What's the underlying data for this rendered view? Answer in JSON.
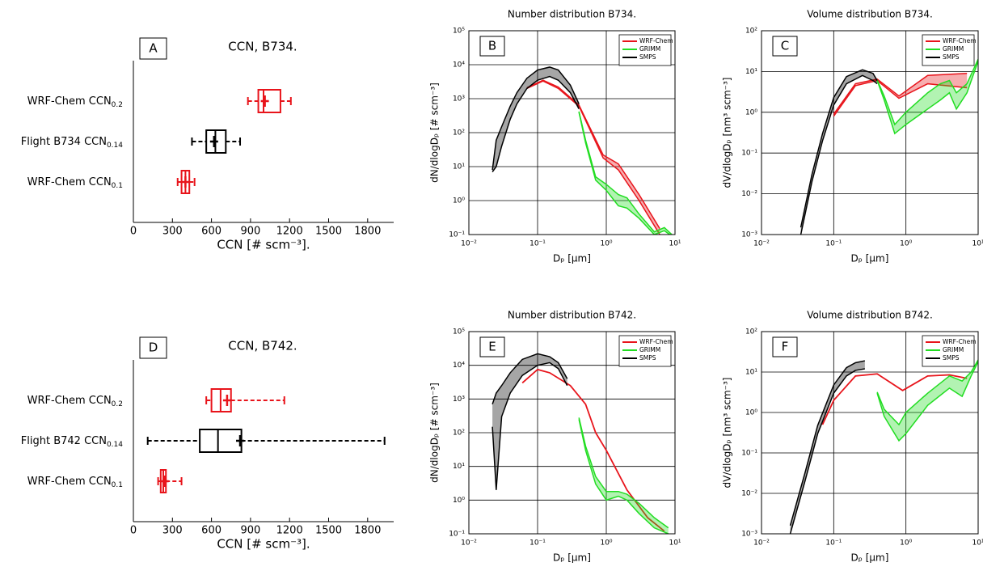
{
  "chart_data": [
    {
      "type": "box",
      "panel_label": "A",
      "title": "CCN, B734.",
      "xlabel": "CCN [# scm⁻³].",
      "categories": [
        "WRF-Chem CCN0.2",
        "Flight B734 CCN0.14",
        "WRF-Chem CCN0.1"
      ],
      "stats": [
        {
          "color": "#e8141b",
          "low": 880,
          "q1": 960,
          "median": 1000,
          "q3": 1130,
          "high": 1210,
          "mean": 1010
        },
        {
          "color": "#000000",
          "low": 450,
          "q1": 560,
          "median": 630,
          "q3": 710,
          "high": 820,
          "mean": 620
        },
        {
          "color": "#e8141b",
          "low": 340,
          "q1": 370,
          "median": 400,
          "q3": 430,
          "high": 470,
          "mean": 400
        }
      ],
      "whisker_style": "dashed",
      "xlim": [
        0,
        2000
      ],
      "xticks": [
        0,
        300,
        600,
        900,
        1200,
        1500,
        1800
      ]
    },
    {
      "type": "loglog",
      "panel_label": "B",
      "title": "Number distribution B734.",
      "xlabel": "Dₚ [μm]",
      "ylabel": "dN/dlogDₚ [# scm⁻³]",
      "xlim": [
        0.01,
        10
      ],
      "ylim": [
        0.1,
        100000
      ],
      "xticks": [
        {
          "value": 0.01,
          "label": "10⁻²"
        },
        {
          "value": 0.1,
          "label": "10⁻¹"
        },
        {
          "value": 1,
          "label": "10⁰"
        },
        {
          "value": 10,
          "label": "10¹"
        }
      ],
      "yticks": [
        {
          "value": 0.1,
          "label": "10⁻¹"
        },
        {
          "value": 1,
          "label": "10⁰"
        },
        {
          "value": 10,
          "label": "10¹"
        },
        {
          "value": 100,
          "label": "10²"
        },
        {
          "value": 1000,
          "label": "10³"
        },
        {
          "value": 10000,
          "label": "10⁴"
        },
        {
          "value": 100000,
          "label": "10⁵"
        }
      ],
      "log_scale": true,
      "grid": true,
      "legend": "upper right",
      "series": [
        {
          "name": "WRF-Chem",
          "color": "#e8141b",
          "x": [
            0.07,
            0.12,
            0.2,
            0.4,
            0.9,
            1.5,
            3,
            6
          ],
          "lower": [
            2000,
            3300,
            2000,
            600,
            18,
            8,
            1,
            0.1
          ],
          "upper": [
            2100,
            3500,
            2200,
            650,
            22,
            12,
            1.5,
            0.15
          ]
        },
        {
          "name": "GRIMM",
          "color": "#22dd22",
          "x": [
            0.4,
            0.5,
            0.7,
            1,
            1.5,
            2,
            3,
            5,
            7,
            9
          ],
          "lower": [
            400,
            50,
            4,
            2,
            0.7,
            0.6,
            0.3,
            0.1,
            0.13,
            0.09
          ],
          "upper": [
            420,
            60,
            5,
            3,
            1.5,
            1.2,
            0.4,
            0.12,
            0.16,
            0.1
          ]
        },
        {
          "name": "SMPS",
          "color": "#000000",
          "x": [
            0.022,
            0.025,
            0.03,
            0.04,
            0.05,
            0.07,
            0.1,
            0.15,
            0.2,
            0.3,
            0.4
          ],
          "lower": [
            7,
            10,
            40,
            250,
            700,
            2000,
            3500,
            4500,
            3500,
            1500,
            500
          ],
          "upper": [
            8,
            60,
            150,
            600,
            1500,
            4000,
            7000,
            8500,
            7000,
            2500,
            700
          ]
        }
      ]
    },
    {
      "type": "loglog",
      "panel_label": "C",
      "title": "Volume distribution B734.",
      "xlabel": "Dₚ [μm]",
      "ylabel": "dV/dlogDₚ [nm³ scm⁻³]",
      "xlim": [
        0.01,
        10
      ],
      "ylim": [
        0.001,
        100
      ],
      "xticks": [
        {
          "value": 0.01,
          "label": "10⁻²"
        },
        {
          "value": 0.1,
          "label": "10⁻¹"
        },
        {
          "value": 1,
          "label": "10⁰"
        },
        {
          "value": 10,
          "label": "10¹"
        }
      ],
      "yticks": [
        {
          "value": 0.001,
          "label": "10⁻³"
        },
        {
          "value": 0.01,
          "label": "10⁻²"
        },
        {
          "value": 0.1,
          "label": "10⁻¹"
        },
        {
          "value": 1,
          "label": "10⁰"
        },
        {
          "value": 10,
          "label": "10¹"
        },
        {
          "value": 100,
          "label": "10²"
        }
      ],
      "log_scale": true,
      "grid": true,
      "legend": "upper right",
      "series": [
        {
          "name": "WRF-Chem",
          "color": "#e8141b",
          "x": [
            0.1,
            0.2,
            0.4,
            0.8,
            2,
            7
          ],
          "lower": [
            0.8,
            4.5,
            6,
            2.2,
            5,
            4
          ],
          "upper": [
            0.9,
            5,
            6.5,
            2.5,
            8,
            9
          ]
        },
        {
          "name": "GRIMM",
          "color": "#22dd22",
          "x": [
            0.4,
            0.5,
            0.7,
            1,
            2,
            3,
            4,
            5,
            7,
            10
          ],
          "lower": [
            6,
            2,
            0.3,
            0.5,
            1.2,
            2,
            3,
            1.2,
            3,
            18
          ],
          "upper": [
            6.2,
            2.5,
            0.5,
            1,
            3,
            5,
            6,
            3,
            5,
            20
          ]
        },
        {
          "name": "SMPS",
          "color": "#000000",
          "x": [
            0.035,
            0.05,
            0.07,
            0.1,
            0.15,
            0.25,
            0.35,
            0.4
          ],
          "lower": [
            0.001,
            0.02,
            0.2,
            1.5,
            5,
            8,
            6,
            5
          ],
          "upper": [
            0.0015,
            0.03,
            0.3,
            2.3,
            7.5,
            11,
            9,
            6
          ]
        }
      ]
    },
    {
      "type": "box",
      "panel_label": "D",
      "title": "CCN, B742.",
      "xlabel": "CCN [# scm⁻³].",
      "categories": [
        "WRF-Chem CCN0.2",
        "Flight B742 CCN0.14",
        "WRF-Chem CCN0.1"
      ],
      "stats": [
        {
          "color": "#e8141b",
          "low": 560,
          "q1": 600,
          "median": 670,
          "q3": 750,
          "high": 1160,
          "mean": 720
        },
        {
          "color": "#000000",
          "low": 110,
          "q1": 510,
          "median": 650,
          "q3": 830,
          "high": 1930,
          "mean": 820
        },
        {
          "color": "#e8141b",
          "low": 190,
          "q1": 210,
          "median": 230,
          "q3": 250,
          "high": 370,
          "mean": 240
        }
      ],
      "whisker_style": "dashed",
      "xlim": [
        0,
        2000
      ],
      "xticks": [
        0,
        300,
        600,
        900,
        1200,
        1500,
        1800
      ]
    },
    {
      "type": "loglog",
      "panel_label": "E",
      "title": "Number distribution B742.",
      "xlabel": "Dₚ [μm]",
      "ylabel": "dN/dlogDₚ [# scm⁻³]",
      "xlim": [
        0.01,
        10
      ],
      "ylim": [
        0.1,
        100000
      ],
      "xticks": [
        {
          "value": 0.01,
          "label": "10⁻²"
        },
        {
          "value": 0.1,
          "label": "10⁻¹"
        },
        {
          "value": 1,
          "label": "10⁰"
        },
        {
          "value": 10,
          "label": "10¹"
        }
      ],
      "yticks": [
        {
          "value": 0.1,
          "label": "10⁻¹"
        },
        {
          "value": 1,
          "label": "10⁰"
        },
        {
          "value": 10,
          "label": "10¹"
        },
        {
          "value": 100,
          "label": "10²"
        },
        {
          "value": 1000,
          "label": "10³"
        },
        {
          "value": 10000,
          "label": "10⁴"
        },
        {
          "value": 100000,
          "label": "10⁵"
        }
      ],
      "log_scale": true,
      "grid": true,
      "legend": "upper right",
      "series": [
        {
          "name": "WRF-Chem",
          "color": "#e8141b",
          "x": [
            0.06,
            0.1,
            0.15,
            0.3,
            0.5,
            0.7,
            1,
            2,
            4,
            7
          ],
          "values": [
            3000,
            7500,
            6000,
            2500,
            700,
            100,
            30,
            2,
            0.3,
            0.12
          ]
        },
        {
          "name": "GRIMM",
          "color": "#22dd22",
          "x": [
            0.4,
            0.5,
            0.7,
            1,
            1.5,
            2,
            3,
            5,
            8
          ],
          "lower": [
            250,
            30,
            3,
            1,
            1.3,
            1,
            0.4,
            0.15,
            0.1
          ],
          "upper": [
            280,
            40,
            5,
            1.8,
            1.8,
            1.5,
            0.8,
            0.3,
            0.15
          ]
        },
        {
          "name": "SMPS",
          "color": "#000000",
          "x": [
            0.022,
            0.025,
            0.03,
            0.04,
            0.06,
            0.1,
            0.15,
            0.2,
            0.27
          ],
          "lower": [
            150,
            2,
            300,
            1500,
            5000,
            10000,
            12000,
            8000,
            2500
          ],
          "upper": [
            700,
            1500,
            2500,
            6000,
            15000,
            22000,
            18000,
            12000,
            4000
          ]
        }
      ]
    },
    {
      "type": "loglog",
      "panel_label": "F",
      "title": "Volume distribution B742.",
      "xlabel": "Dₚ [μm]",
      "ylabel": "dV/dlogDₚ [nm³ scm⁻³]",
      "xlim": [
        0.01,
        10
      ],
      "ylim": [
        0.001,
        100
      ],
      "xticks": [
        {
          "value": 0.01,
          "label": "10⁻²"
        },
        {
          "value": 0.1,
          "label": "10⁻¹"
        },
        {
          "value": 1,
          "label": "10⁰"
        },
        {
          "value": 10,
          "label": "10¹"
        }
      ],
      "yticks": [
        {
          "value": 0.001,
          "label": "10⁻³"
        },
        {
          "value": 0.01,
          "label": "10⁻²"
        },
        {
          "value": 0.1,
          "label": "10⁻¹"
        },
        {
          "value": 1,
          "label": "10⁰"
        },
        {
          "value": 10,
          "label": "10¹"
        },
        {
          "value": 100,
          "label": "10²"
        }
      ],
      "log_scale": true,
      "grid": true,
      "legend": "upper right",
      "series": [
        {
          "name": "WRF-Chem",
          "color": "#e8141b",
          "x": [
            0.07,
            0.1,
            0.2,
            0.4,
            0.9,
            2,
            4,
            7
          ],
          "values": [
            0.5,
            2,
            8,
            9,
            3.5,
            8,
            8.5,
            7
          ]
        },
        {
          "name": "GRIMM",
          "color": "#22dd22",
          "x": [
            0.4,
            0.5,
            0.8,
            1,
            2,
            4,
            6,
            8,
            10
          ],
          "lower": [
            3,
            0.8,
            0.2,
            0.3,
            1.5,
            4,
            2.5,
            8,
            18
          ],
          "upper": [
            3.2,
            1.2,
            0.5,
            1,
            3,
            8,
            6,
            10,
            20
          ]
        },
        {
          "name": "SMPS",
          "color": "#000000",
          "x": [
            0.025,
            0.04,
            0.06,
            0.1,
            0.15,
            0.2,
            0.27
          ],
          "lower": [
            0.001,
            0.02,
            0.3,
            3,
            8,
            11,
            12
          ],
          "upper": [
            0.0016,
            0.032,
            0.48,
            4.8,
            12.8,
            17,
            19
          ]
        }
      ]
    }
  ]
}
